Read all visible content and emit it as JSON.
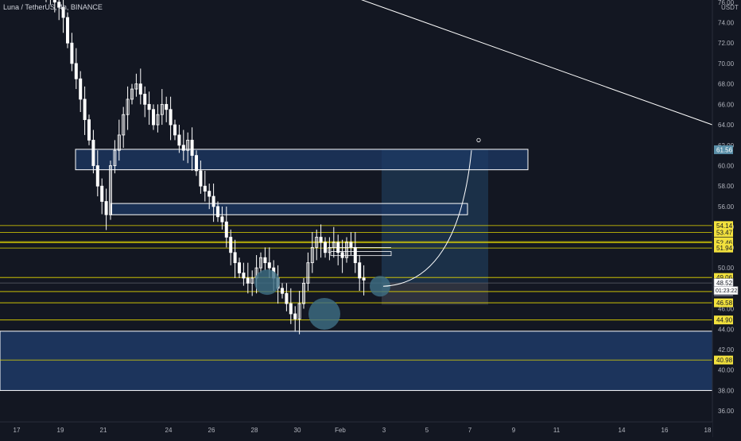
{
  "header": {
    "symbol_line": "Luna / TetherUS, 4h, BINANCE",
    "currency": "USDT"
  },
  "colors": {
    "background": "#131722",
    "candle": "#ffffff",
    "level_line": "#e5d800",
    "zone_fill": "#1e3a66",
    "zone_border": "#ffffff",
    "target_box": "#1f3a55",
    "stop_box": "#3a3f4a",
    "circle": "#3e6f86",
    "axis_text": "#b2b5be",
    "price_tag": "#131722",
    "level_tag_bg": "#f2e13d",
    "highlight_tag_bg": "#5a8fa8"
  },
  "chart_data": {
    "type": "candlestick",
    "title": "Luna / TetherUS, 4h, BINANCE",
    "ylabel": "USDT",
    "ylim": [
      35,
      77
    ],
    "x_ticks": [
      "17",
      "19",
      "21",
      "24",
      "26",
      "28",
      "30",
      "Feb",
      "3",
      "5",
      "7",
      "9",
      "11",
      "14",
      "16",
      "18"
    ],
    "y_ticks": [
      "36.00",
      "38.00",
      "40.00",
      "42.00",
      "44.00",
      "46.00",
      "48.00",
      "50.00",
      "52.00",
      "54.00",
      "56.00",
      "58.00",
      "60.00",
      "62.00",
      "64.00",
      "66.00",
      "68.00",
      "70.00",
      "72.00",
      "74.00",
      "76.00"
    ],
    "candles_close_path": [
      76.5,
      77.0,
      76.0,
      75.5,
      74.5,
      72.0,
      70.0,
      68.5,
      66.5,
      64.5,
      62.5,
      60.0,
      58.0,
      56.5,
      55.2,
      60.0,
      61.5,
      63.0,
      65.0,
      66.5,
      67.5,
      68.0,
      67.0,
      66.0,
      65.5,
      64.0,
      65.0,
      66.0,
      65.5,
      64.0,
      63.0,
      62.0,
      61.5,
      62.5,
      61.0,
      59.5,
      58.0,
      57.5,
      57.0,
      56.0,
      55.0,
      54.5,
      53.0,
      51.5,
      50.5,
      49.5,
      49.0,
      48.5,
      49.0,
      50.0,
      51.0,
      50.5,
      50.0,
      49.0,
      48.0,
      47.5,
      46.5,
      45.5,
      45.0,
      46.5,
      48.5,
      50.5,
      52.0,
      53.0,
      52.5,
      51.5,
      52.0,
      52.5,
      51.5,
      51.0,
      52.5,
      52.0,
      50.5,
      49.0,
      48.8
    ],
    "levels": [
      54.14,
      53.47,
      52.56,
      52.46,
      51.94,
      49.06,
      47.68,
      46.58,
      44.9,
      40.98
    ],
    "last_price": "48.52",
    "countdown": "01:23:22",
    "highlight_price": "47.63",
    "target_price": "61.56",
    "supply_zones": [
      {
        "from": 59.6,
        "to": 61.6
      },
      {
        "from": 55.2,
        "to": 56.3
      }
    ],
    "demand_zone": {
      "from": 38.0,
      "to": 43.8
    },
    "price_tags": [
      {
        "label": "61.56",
        "value": 61.56,
        "style": "highlight"
      },
      {
        "label": "54.14",
        "value": 54.14,
        "style": "level"
      },
      {
        "label": "53.47",
        "value": 53.47,
        "style": "level"
      },
      {
        "label": "52.56",
        "value": 52.56,
        "style": "level"
      },
      {
        "label": "52.46",
        "value": 52.46,
        "style": "level"
      },
      {
        "label": "51.94",
        "value": 51.94,
        "style": "level"
      },
      {
        "label": "49.06",
        "value": 49.06,
        "style": "level"
      },
      {
        "label": "48.52",
        "value": 48.52,
        "style": "last"
      },
      {
        "label": "47.68",
        "value": 47.68,
        "style": "level"
      },
      {
        "label": "47.63",
        "value": 47.63,
        "style": "gray"
      },
      {
        "label": "46.58",
        "value": 46.58,
        "style": "level"
      },
      {
        "label": "44.90",
        "value": 44.9,
        "style": "level"
      },
      {
        "label": "40.98",
        "value": 40.98,
        "style": "level"
      }
    ]
  }
}
